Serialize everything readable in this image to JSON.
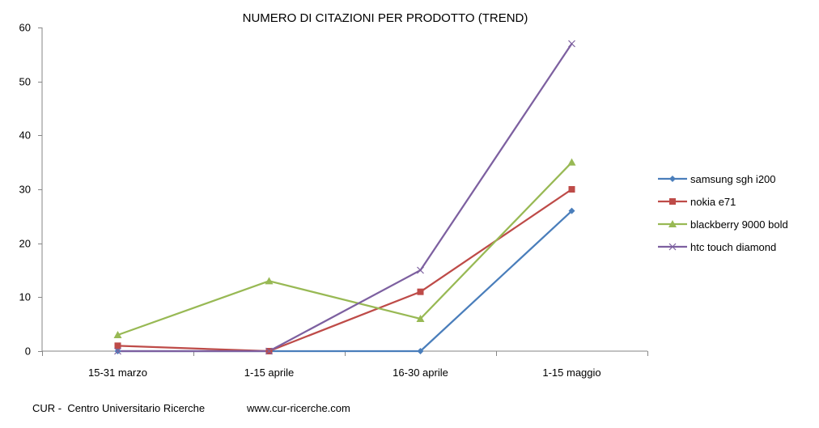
{
  "chart_data": {
    "type": "line",
    "title": "NUMERO DI CITAZIONI PER PRODOTTO  (TREND)",
    "xlabel": "",
    "ylabel": "",
    "categories": [
      "15-31 marzo",
      "1-15 aprile",
      "16-30 aprile",
      "1-15 maggio"
    ],
    "ylim": [
      0,
      60
    ],
    "yticks": [
      0,
      10,
      20,
      30,
      40,
      50,
      60
    ],
    "grid": false,
    "legend": "right",
    "series": [
      {
        "name": "samsung sgh i200",
        "values": [
          0,
          0,
          0,
          26
        ],
        "color": "#4A7EBB",
        "marker": "diamond"
      },
      {
        "name": "nokia e71",
        "values": [
          1,
          0,
          11,
          30
        ],
        "color": "#BE4B48",
        "marker": "square"
      },
      {
        "name": "blackberry 9000 bold",
        "values": [
          3,
          13,
          6,
          35
        ],
        "color": "#98B954",
        "marker": "triangle"
      },
      {
        "name": "htc touch diamond",
        "values": [
          0,
          0,
          15,
          57
        ],
        "color": "#7D60A0",
        "marker": "x"
      }
    ]
  },
  "footer": {
    "source": "CUR -  Centro Universitario Ricerche",
    "website": "www.cur-ricerche.com"
  }
}
